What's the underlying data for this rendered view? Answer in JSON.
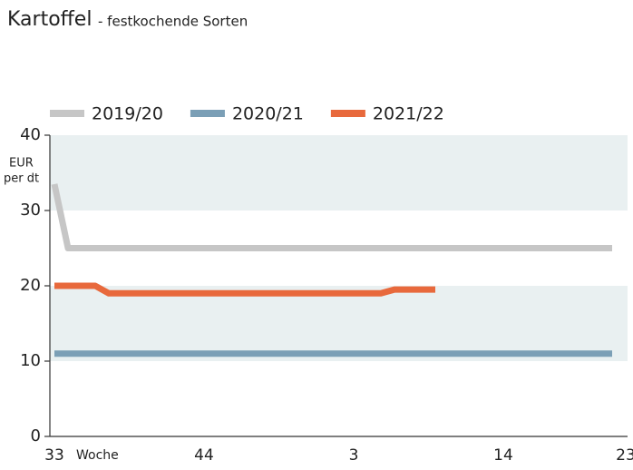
{
  "chart_data": {
    "type": "line",
    "title": "Kartoffel",
    "subtitle": "- festkochende Sorten",
    "y_label": [
      "EUR",
      "per dt"
    ],
    "x_label": "Woche",
    "categories": [
      "33",
      null,
      null,
      null,
      null,
      null,
      null,
      null,
      null,
      null,
      null,
      "44",
      null,
      null,
      null,
      null,
      null,
      null,
      null,
      null,
      null,
      null,
      "3",
      null,
      null,
      null,
      null,
      null,
      null,
      null,
      null,
      null,
      null,
      "14",
      null,
      null,
      null,
      null,
      null,
      null,
      null,
      null,
      "23"
    ],
    "series": [
      {
        "name": "2019/20",
        "color": "#c6c6c6",
        "values": [
          33.5,
          25,
          25,
          25,
          25,
          25,
          25,
          25,
          25,
          25,
          25,
          25,
          25,
          25,
          25,
          25,
          25,
          25,
          25,
          25,
          25,
          25,
          25,
          25,
          25,
          25,
          25,
          25,
          25,
          25,
          25,
          25,
          25,
          25,
          25,
          25,
          25,
          25,
          25,
          25,
          25,
          25,
          null
        ]
      },
      {
        "name": "2020/21",
        "color": "#7b9fb6",
        "values": [
          11,
          11,
          11,
          11,
          11,
          11,
          11,
          11,
          11,
          11,
          11,
          11,
          11,
          11,
          11,
          11,
          11,
          11,
          11,
          11,
          11,
          11,
          11,
          11,
          11,
          11,
          11,
          11,
          11,
          11,
          11,
          11,
          11,
          11,
          11,
          11,
          11,
          11,
          11,
          11,
          11,
          11,
          null
        ]
      },
      {
        "name": "2021/22",
        "color": "#e8693c",
        "values": [
          20,
          20,
          20,
          20,
          19,
          19,
          19,
          19,
          19,
          19,
          19,
          19,
          19,
          19,
          19,
          19,
          19,
          19,
          19,
          19,
          19,
          19,
          19,
          19,
          19,
          19.5,
          19.5,
          19.5,
          19.5,
          null,
          null,
          null,
          null,
          null,
          null,
          null,
          null,
          null,
          null,
          null,
          null,
          null,
          null
        ]
      }
    ],
    "ylim": [
      0,
      40
    ],
    "yticks": [
      0,
      10,
      20,
      30,
      40
    ],
    "band_color": "#e9f0f1",
    "grid": false
  }
}
